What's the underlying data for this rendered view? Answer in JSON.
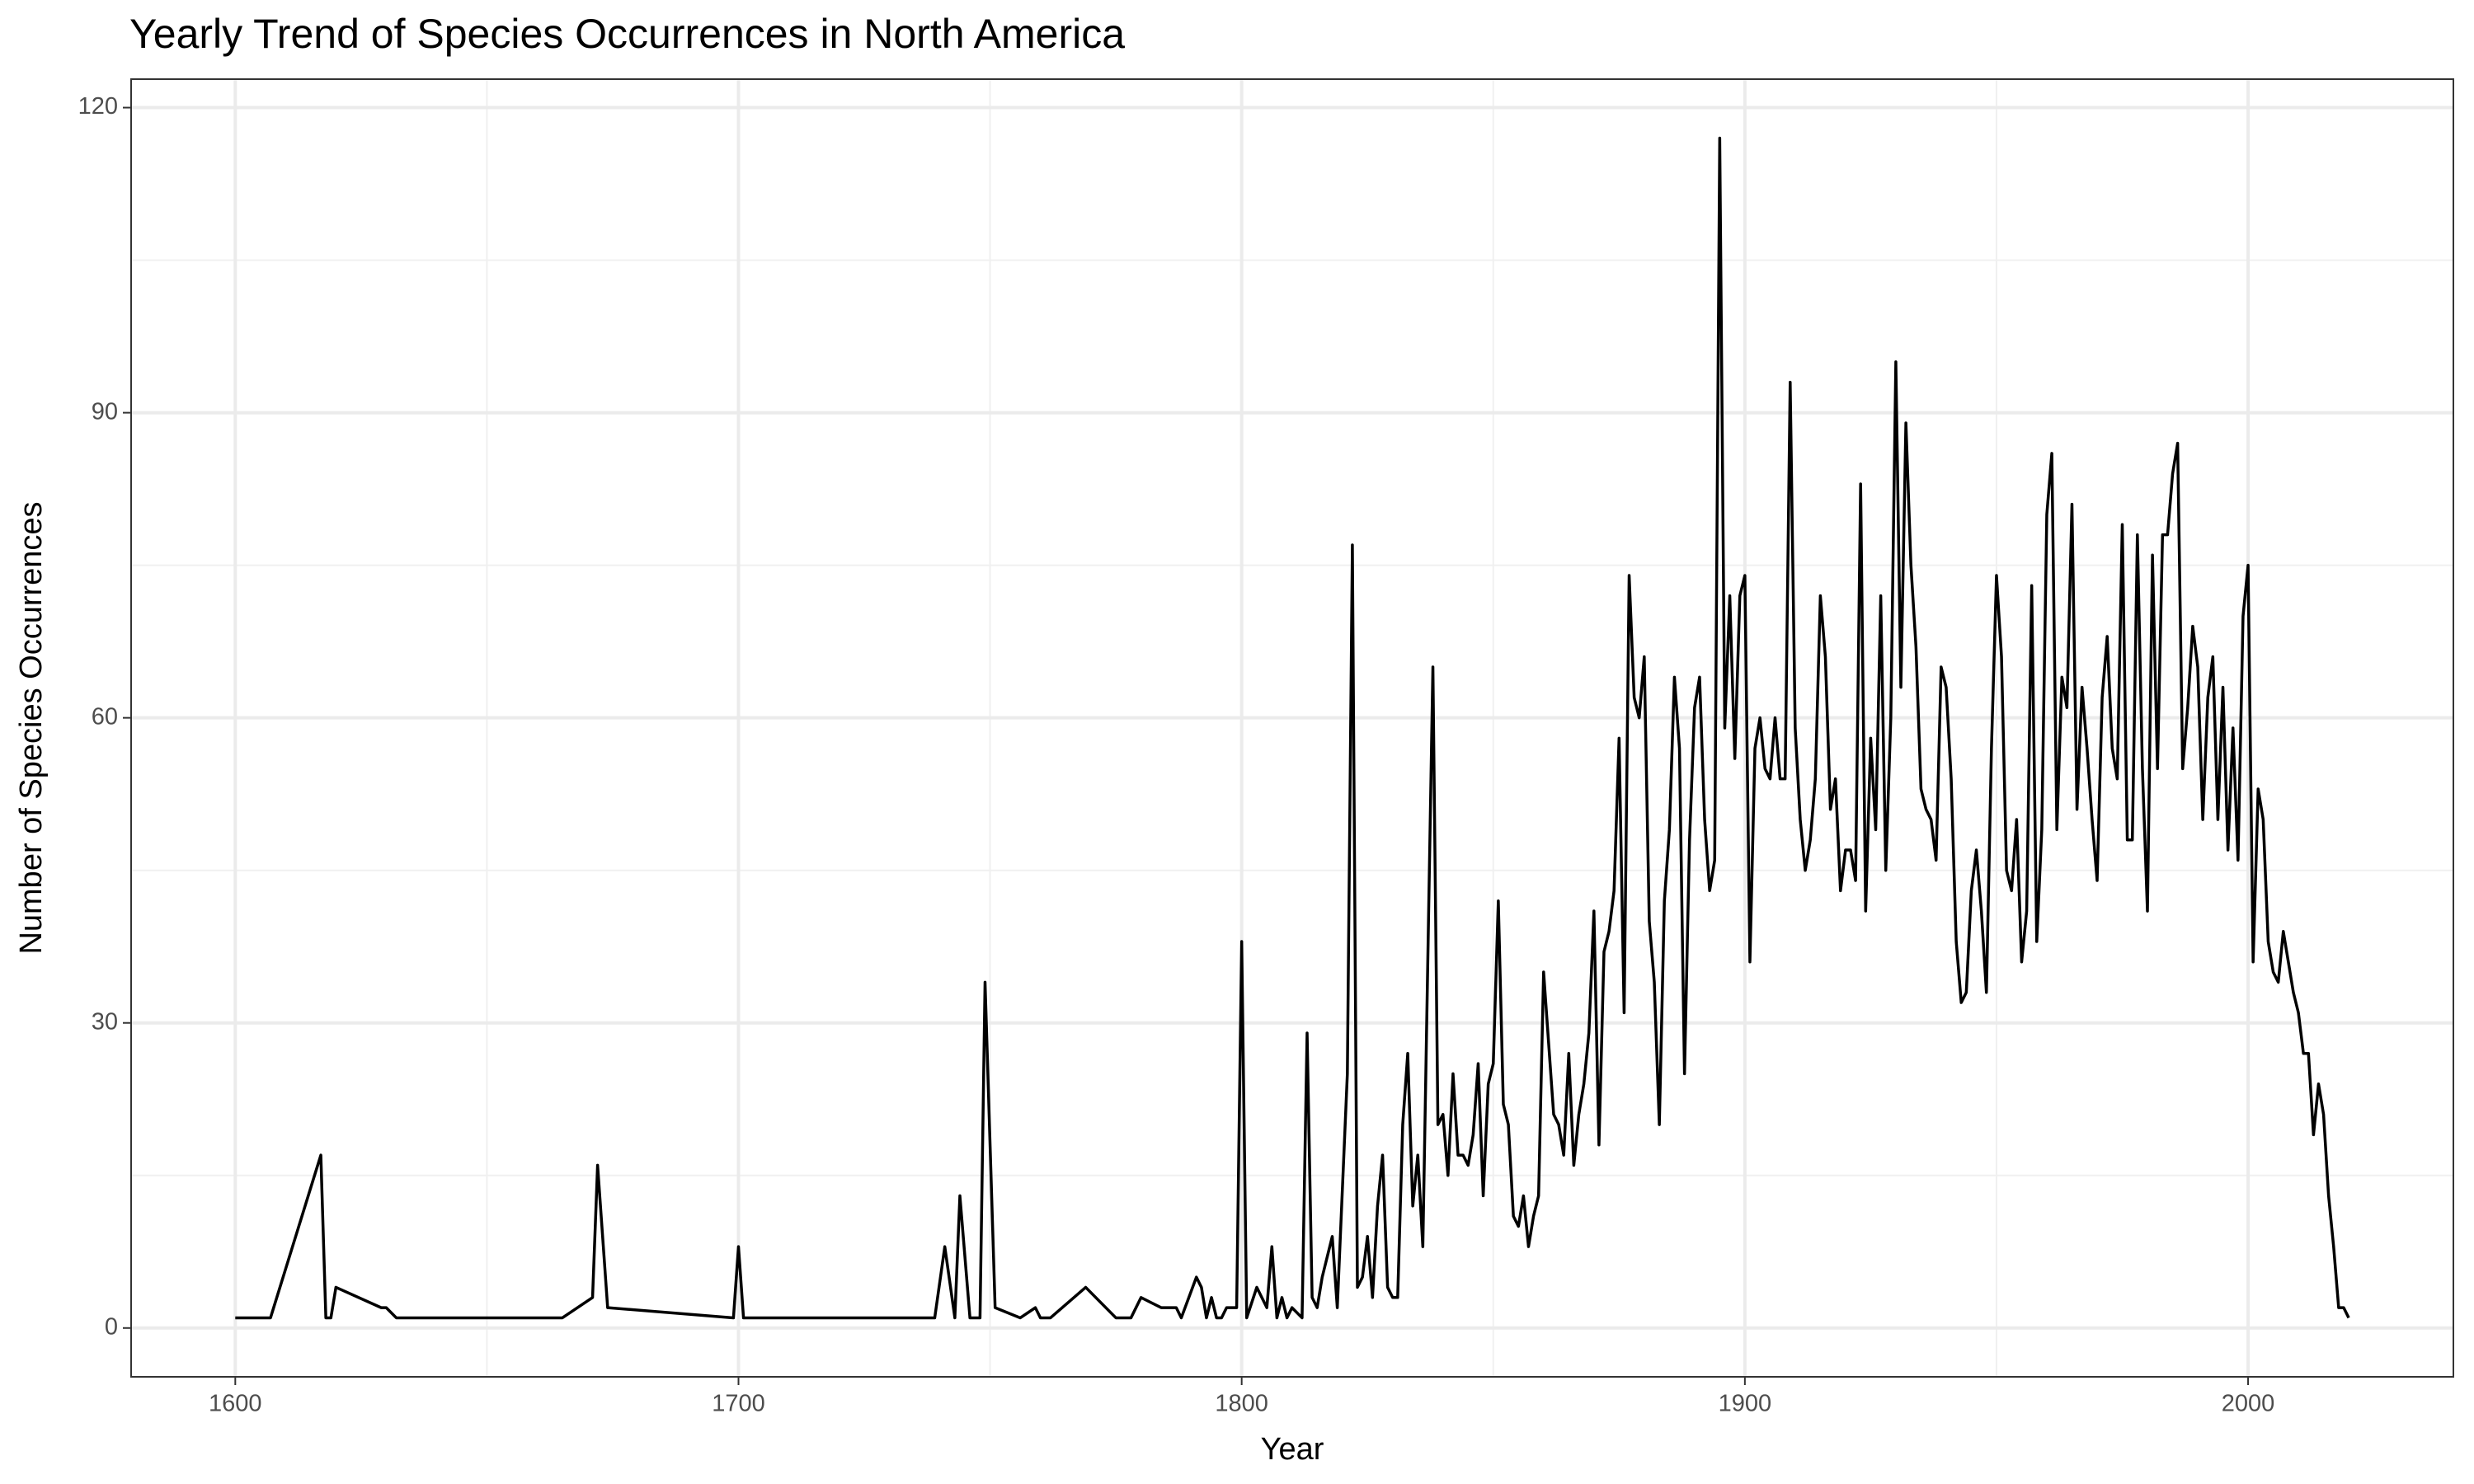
{
  "chart_data": {
    "type": "line",
    "title": "Yearly Trend of Species Occurrences in North America",
    "x_label": "Year",
    "y_label": "Number of Species Occurrences",
    "color": "#000000",
    "grid": true,
    "xlim": [
      1579.3,
      2040.8
    ],
    "ylim": [
      -4.8,
      122.8
    ],
    "xticks": [
      1600,
      1700,
      1800,
      1900,
      2000
    ],
    "yticks": [
      0,
      30,
      60,
      90,
      120
    ],
    "x_minor_ticks": [
      1650,
      1750,
      1850,
      1950
    ],
    "y_minor_ticks": [
      15,
      45,
      75,
      105
    ],
    "x": [
      1600,
      1607,
      1617,
      1618,
      1619,
      1620,
      1629,
      1630,
      1632,
      1665,
      1671,
      1672,
      1674,
      1699,
      1700,
      1701,
      1739,
      1741,
      1743,
      1744,
      1746,
      1748,
      1749,
      1751,
      1756,
      1759,
      1760,
      1762,
      1769,
      1775,
      1778,
      1780,
      1784,
      1787,
      1788,
      1791,
      1792,
      1793,
      1794,
      1795,
      1796,
      1797,
      1799,
      1800,
      1801,
      1803,
      1805,
      1806,
      1807,
      1808,
      1809,
      1810,
      1812,
      1813,
      1814,
      1815,
      1816,
      1818,
      1819,
      1821,
      1822,
      1823,
      1824,
      1825,
      1826,
      1827,
      1828,
      1829,
      1830,
      1831,
      1832,
      1833,
      1834,
      1835,
      1836,
      1838,
      1839,
      1840,
      1841,
      1842,
      1843,
      1844,
      1845,
      1846,
      1847,
      1848,
      1849,
      1850,
      1851,
      1852,
      1853,
      1854,
      1855,
      1856,
      1857,
      1858,
      1859,
      1860,
      1861,
      1862,
      1863,
      1864,
      1865,
      1866,
      1867,
      1868,
      1869,
      1870,
      1871,
      1872,
      1873,
      1874,
      1875,
      1876,
      1877,
      1878,
      1879,
      1880,
      1881,
      1882,
      1883,
      1884,
      1885,
      1886,
      1887,
      1888,
      1889,
      1890,
      1891,
      1892,
      1893,
      1894,
      1895,
      1896,
      1897,
      1898,
      1899,
      1900,
      1901,
      1902,
      1903,
      1904,
      1905,
      1906,
      1907,
      1908,
      1909,
      1910,
      1911,
      1912,
      1913,
      1914,
      1915,
      1916,
      1917,
      1918,
      1919,
      1920,
      1921,
      1922,
      1923,
      1924,
      1925,
      1926,
      1927,
      1928,
      1929,
      1930,
      1931,
      1932,
      1933,
      1934,
      1935,
      1936,
      1937,
      1938,
      1939,
      1940,
      1941,
      1942,
      1943,
      1944,
      1945,
      1946,
      1947,
      1948,
      1949,
      1950,
      1951,
      1952,
      1953,
      1954,
      1955,
      1956,
      1957,
      1958,
      1959,
      1960,
      1961,
      1962,
      1963,
      1964,
      1965,
      1966,
      1967,
      1968,
      1969,
      1970,
      1971,
      1972,
      1973,
      1974,
      1975,
      1976,
      1977,
      1978,
      1979,
      1980,
      1981,
      1982,
      1983,
      1984,
      1985,
      1986,
      1987,
      1988,
      1989,
      1990,
      1991,
      1992,
      1993,
      1994,
      1995,
      1996,
      1997,
      1998,
      1999,
      2000,
      2001,
      2002,
      2003,
      2004,
      2005,
      2006,
      2007,
      2008,
      2009,
      2010,
      2011,
      2012,
      2013,
      2014,
      2015,
      2016,
      2017,
      2018,
      2019,
      2020
    ],
    "values": [
      1,
      1,
      17,
      1,
      1,
      4,
      2,
      2,
      1,
      1,
      3,
      16,
      2,
      1,
      8,
      1,
      1,
      8,
      1,
      13,
      1,
      1,
      34,
      2,
      1,
      2,
      1,
      1,
      4,
      1,
      1,
      3,
      2,
      2,
      1,
      5,
      4,
      1,
      3,
      1,
      1,
      2,
      2,
      38,
      1,
      4,
      2,
      8,
      1,
      3,
      1,
      2,
      1,
      29,
      3,
      2,
      5,
      9,
      2,
      25,
      77,
      4,
      5,
      9,
      3,
      12,
      17,
      4,
      3,
      3,
      20,
      27,
      12,
      17,
      8,
      65,
      20,
      21,
      15,
      25,
      17,
      17,
      16,
      19,
      26,
      13,
      24,
      26,
      42,
      22,
      20,
      11,
      10,
      13,
      8,
      11,
      13,
      35,
      28,
      21,
      20,
      17,
      27,
      16,
      21,
      24,
      29,
      41,
      18,
      37,
      39,
      43,
      58,
      31,
      74,
      62,
      60,
      66,
      40,
      34,
      20,
      42,
      49,
      64,
      57,
      25,
      48,
      61,
      64,
      50,
      43,
      46,
      117,
      59,
      72,
      56,
      72,
      74,
      36,
      57,
      60,
      55,
      54,
      60,
      54,
      54,
      93,
      59,
      50,
      45,
      48,
      54,
      72,
      66,
      51,
      54,
      43,
      47,
      47,
      44,
      83,
      41,
      58,
      49,
      72,
      45,
      60,
      95,
      63,
      89,
      75,
      67,
      53,
      51,
      50,
      46,
      65,
      63,
      54,
      38,
      32,
      33,
      43,
      47,
      41,
      33,
      57,
      74,
      66,
      45,
      43,
      50,
      36,
      41,
      73,
      38,
      49,
      80,
      86,
      49,
      64,
      61,
      81,
      51,
      63,
      57,
      50,
      44,
      62,
      68,
      57,
      54,
      79,
      48,
      48,
      78,
      55,
      41,
      76,
      55,
      78,
      78,
      84,
      87,
      55,
      61,
      69,
      65,
      50,
      62,
      66,
      50,
      63,
      47,
      59,
      46,
      70,
      75,
      36,
      53,
      50,
      38,
      35,
      34,
      39,
      36,
      33,
      31,
      27,
      27,
      19,
      24,
      21,
      13,
      8,
      2,
      2,
      1
    ]
  }
}
